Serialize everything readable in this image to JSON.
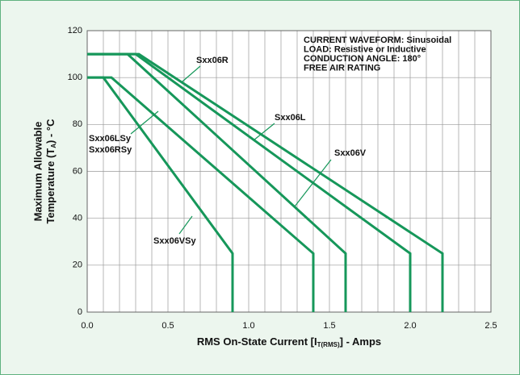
{
  "chart_data": {
    "type": "line",
    "notes": [
      "CURRENT WAVEFORM: Sinusoidal",
      "LOAD: Resistive or Inductive",
      "CONDUCTION ANGLE: 180°",
      "FREE AIR RATING"
    ],
    "ylabel": [
      "Maximum Allowable",
      "Temperature (T",
      "A",
      ") - °C"
    ],
    "xlabel": [
      "RMS On-State Current [I",
      "T(RMS)",
      "] - Amps"
    ],
    "xlim": [
      0,
      2.5
    ],
    "ylim": [
      0,
      120
    ],
    "xticks": [
      {
        "value": 0,
        "label": "0.0"
      },
      0.5,
      {
        "value": 1,
        "label": "1.0"
      },
      1.5,
      {
        "value": 2,
        "label": "2.0"
      },
      2.5
    ],
    "yticks": [
      0,
      20,
      40,
      60,
      80,
      100,
      120
    ],
    "xgrid": [
      0,
      0.1,
      0.2,
      0.3,
      0.4,
      0.5,
      0.6,
      0.7,
      0.8,
      0.9,
      1,
      1.1,
      1.2,
      1.3,
      1.4,
      1.5,
      1.6,
      1.7,
      1.8,
      1.9,
      2,
      2.1,
      2.2,
      2.3,
      2.4,
      2.5
    ],
    "grid": true,
    "series": [
      {
        "name": "Sxx06R",
        "color": "#16975a",
        "x": [
          0,
          0.32,
          2.2,
          2.2
        ],
        "values": [
          110,
          110,
          25,
          0
        ]
      },
      {
        "name": "Sxx06L",
        "color": "#16975a",
        "x": [
          0,
          0.3,
          2.0,
          2.0
        ],
        "values": [
          110,
          110,
          25,
          0
        ]
      },
      {
        "name": "Sxx06V",
        "color": "#16975a",
        "x": [
          0,
          0.25,
          1.6,
          1.6
        ],
        "values": [
          110,
          110,
          25,
          0
        ]
      },
      {
        "name": [
          "Sxx06LSy",
          "Sxx06RSy"
        ],
        "color": "#16975a",
        "x": [
          0,
          0.15,
          1.4,
          1.4
        ],
        "values": [
          100,
          100,
          25,
          0
        ]
      },
      {
        "name": "Sxx06VSy",
        "color": "#16975a",
        "x": [
          0,
          0.1,
          0.9,
          0.9
        ],
        "values": [
          100,
          100,
          25,
          0
        ]
      }
    ]
  }
}
